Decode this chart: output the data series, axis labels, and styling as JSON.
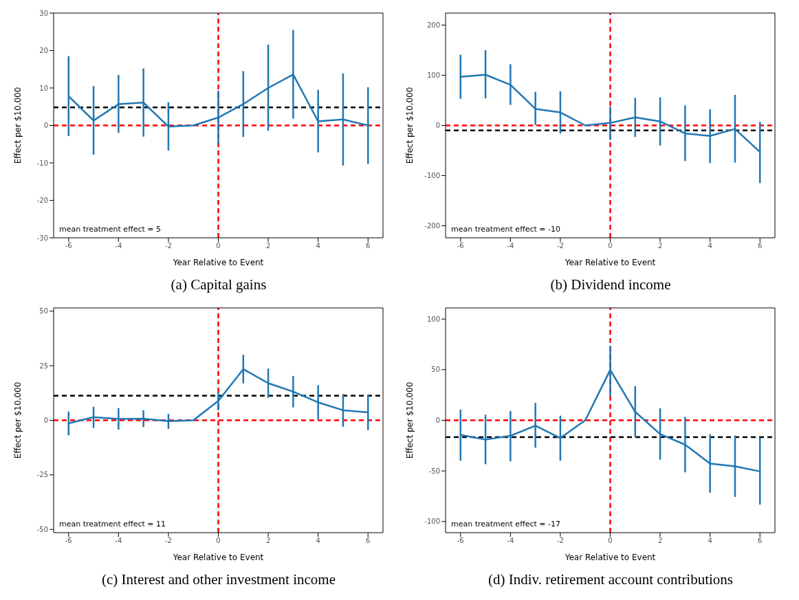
{
  "chart_data": [
    {
      "type": "line",
      "title": "(a) Capital gains",
      "xlabel": "Year Relative to Event",
      "ylabel": "Effect per $10,000",
      "x": [
        -6,
        -5,
        -4,
        -3,
        -2,
        -1,
        0,
        1,
        2,
        3,
        4,
        5,
        6
      ],
      "series": [
        {
          "color": "#1f77b4",
          "values": [
            7.8,
            1.3,
            5.7,
            6.1,
            -0.3,
            0,
            2.1,
            5.7,
            10,
            13.6,
            1.1,
            1.6,
            0
          ],
          "errors": [
            [
              -2.8,
              18.5
            ],
            [
              -7.8,
              10.5
            ],
            [
              -2,
              13.5
            ],
            [
              -3,
              15.2
            ],
            [
              -6.7,
              6.2
            ],
            null,
            [
              -5,
              9.3
            ],
            [
              -3.1,
              14.5
            ],
            [
              -1.4,
              21.6
            ],
            [
              1.8,
              25.5
            ],
            [
              -7.2,
              9.5
            ],
            [
              -10.7,
              13.9
            ],
            [
              -10.3,
              10.2
            ]
          ]
        }
      ],
      "xlim": [
        -6.6,
        6.6
      ],
      "xticks": [
        -6,
        -4,
        -2,
        0,
        2,
        4,
        6
      ],
      "ylim": [
        -30,
        30
      ],
      "yticks": [
        -30,
        -20,
        -10,
        0,
        10,
        20,
        30
      ],
      "ref_lines": [
        {
          "axis": "y",
          "value": 0,
          "color": "#ff0000",
          "line_style": "dashed"
        },
        {
          "axis": "x",
          "value": 0,
          "color": "#ff0000",
          "line_style": "dashed"
        },
        {
          "axis": "y",
          "value": 4.8,
          "color": "#000000",
          "line_style": "dashed"
        }
      ],
      "annotations": [
        "mean treatment effect = 5"
      ],
      "marker": "none",
      "line_style": "solid",
      "legend": false,
      "grid": false
    },
    {
      "type": "line",
      "title": "(b) Dividend income",
      "xlabel": "Year Relative to Event",
      "ylabel": "Effect per $10,000",
      "x": [
        -6,
        -5,
        -4,
        -3,
        -2,
        -1,
        0,
        1,
        2,
        3,
        4,
        5,
        6
      ],
      "series": [
        {
          "color": "#1f77b4",
          "values": [
            97,
            101,
            81,
            33,
            26,
            0,
            5,
            16,
            8,
            -16,
            -21,
            -7,
            -53
          ],
          "errors": [
            [
              53,
              141
            ],
            [
              54,
              150
            ],
            [
              41,
              122
            ],
            [
              1,
              67
            ],
            [
              -16,
              68
            ],
            null,
            [
              -29,
              38
            ],
            [
              -23,
              55
            ],
            [
              -40,
              56
            ],
            [
              -71,
              40
            ],
            [
              -75,
              32
            ],
            [
              -74,
              61
            ],
            [
              -115,
              7
            ]
          ]
        }
      ],
      "xlim": [
        -6.6,
        6.6
      ],
      "xticks": [
        -6,
        -4,
        -2,
        0,
        2,
        4,
        6
      ],
      "ylim": [
        -224,
        224
      ],
      "yticks": [
        -200,
        -100,
        0,
        100,
        200
      ],
      "ref_lines": [
        {
          "axis": "y",
          "value": 0,
          "color": "#ff0000",
          "line_style": "dashed"
        },
        {
          "axis": "x",
          "value": 0,
          "color": "#ff0000",
          "line_style": "dashed"
        },
        {
          "axis": "y",
          "value": -10,
          "color": "#000000",
          "line_style": "dashed"
        }
      ],
      "annotations": [
        "mean treatment effect = -10"
      ],
      "marker": "none",
      "line_style": "solid",
      "legend": false,
      "grid": false
    },
    {
      "type": "line",
      "title": "(c) Interest and other investment income",
      "xlabel": "Year Relative to Event",
      "ylabel": "Effect per $10,000",
      "x": [
        -6,
        -5,
        -4,
        -3,
        -2,
        -1,
        0,
        1,
        2,
        3,
        4,
        5,
        6
      ],
      "series": [
        {
          "color": "#1f77b4",
          "values": [
            -1.4,
            1.4,
            0.6,
            0.7,
            -0.4,
            0,
            8.9,
            23.4,
            17,
            13.1,
            8.2,
            4.6,
            3.6
          ],
          "errors": [
            [
              -6.9,
              4
            ],
            [
              -3.5,
              6.2
            ],
            [
              -4.3,
              5.6
            ],
            [
              -3.1,
              4.6
            ],
            [
              -3.9,
              2.9
            ],
            null,
            [
              4.6,
              13
            ],
            [
              16.9,
              30
            ],
            [
              10.3,
              23.7
            ],
            [
              5.9,
              20.3
            ],
            [
              0.3,
              16.1
            ],
            [
              -3,
              12
            ],
            [
              -4.5,
              11.7
            ]
          ]
        }
      ],
      "xlim": [
        -6.6,
        6.6
      ],
      "xticks": [
        -6,
        -4,
        -2,
        0,
        2,
        4,
        6
      ],
      "ylim": [
        -51.5,
        51.5
      ],
      "yticks": [
        -50,
        -25,
        0,
        25,
        50
      ],
      "ref_lines": [
        {
          "axis": "y",
          "value": 0,
          "color": "#ff0000",
          "line_style": "dashed"
        },
        {
          "axis": "x",
          "value": 0,
          "color": "#ff0000",
          "line_style": "dashed"
        },
        {
          "axis": "y",
          "value": 11.3,
          "color": "#000000",
          "line_style": "dashed"
        }
      ],
      "annotations": [
        "mean treatment effect = 11"
      ],
      "marker": "none",
      "line_style": "solid",
      "legend": false,
      "grid": false
    },
    {
      "type": "line",
      "title": "(d) Indiv. retirement account contributions",
      "xlabel": "Year Relative to Event",
      "ylabel": "Effect per $10,000",
      "x": [
        -6,
        -5,
        -4,
        -3,
        -2,
        -1,
        0,
        1,
        2,
        3,
        4,
        5,
        6
      ],
      "series": [
        {
          "color": "#1f77b4",
          "values": [
            -14.4,
            -19.1,
            -15.3,
            -5.4,
            -17.5,
            0,
            49.8,
            8.3,
            -13.7,
            -24.1,
            -42.7,
            -45.5,
            -50.5
          ],
          "errors": [
            [
              -39.9,
              10.6
            ],
            [
              -43.4,
              5.4
            ],
            [
              -40.6,
              9.2
            ],
            [
              -27.1,
              17.2
            ],
            [
              -39.9,
              4.5
            ],
            null,
            [
              24,
              73.6
            ],
            [
              -16.5,
              33.7
            ],
            [
              -38.9,
              11.8
            ],
            [
              -51.4,
              3.3
            ],
            [
              -71.5,
              -13.9
            ],
            [
              -75.7,
              -15.1
            ],
            [
              -83.3,
              -17.2
            ]
          ]
        }
      ],
      "xlim": [
        -6.6,
        6.6
      ],
      "xticks": [
        -6,
        -4,
        -2,
        0,
        2,
        4,
        6
      ],
      "ylim": [
        -111,
        111
      ],
      "yticks": [
        -100,
        -50,
        0,
        50,
        100
      ],
      "ref_lines": [
        {
          "axis": "y",
          "value": 0,
          "color": "#ff0000",
          "line_style": "dashed"
        },
        {
          "axis": "x",
          "value": 0,
          "color": "#ff0000",
          "line_style": "dashed"
        },
        {
          "axis": "y",
          "value": -16.7,
          "color": "#000000",
          "line_style": "dashed"
        }
      ],
      "annotations": [
        "mean treatment effect = -17"
      ],
      "marker": "none",
      "line_style": "solid",
      "legend": false,
      "grid": false
    }
  ]
}
